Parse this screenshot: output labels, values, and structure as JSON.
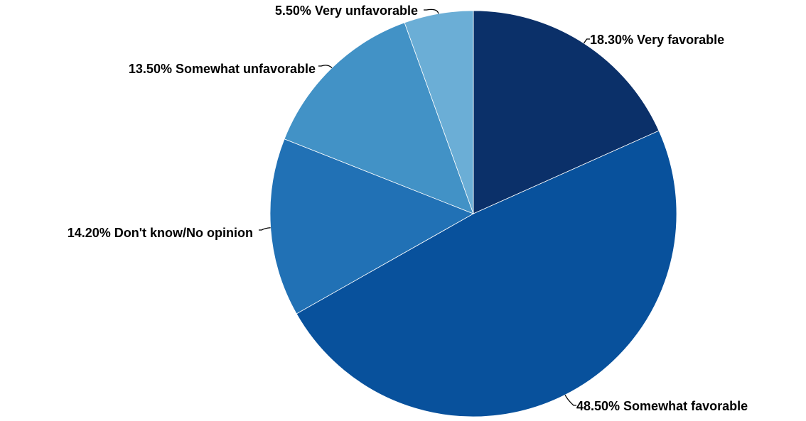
{
  "chart_data": {
    "type": "pie",
    "start_angle_deg": 0,
    "direction": "clockwise",
    "series": [
      {
        "values": [
          18.3,
          48.5,
          14.2,
          13.5,
          5.5
        ]
      }
    ],
    "slices": [
      {
        "category": "Very favorable",
        "value": 18.3,
        "label": "18.30% Very favorable",
        "color": "#0b3069"
      },
      {
        "category": "Somewhat favorable",
        "value": 48.5,
        "label": "48.50% Somewhat favorable",
        "color": "#08519c"
      },
      {
        "category": "Don't know/No opinion",
        "value": 14.2,
        "label": "14.20% Don't know/No opinion",
        "color": "#2171b5"
      },
      {
        "category": "Somewhat unfavorable",
        "value": 13.5,
        "label": "13.50% Somewhat unfavorable",
        "color": "#4292c6"
      },
      {
        "category": "Very unfavorable",
        "value": 5.5,
        "label": "5.50% Very unfavorable",
        "color": "#6baed6"
      }
    ],
    "legend": "none",
    "grid": false
  }
}
